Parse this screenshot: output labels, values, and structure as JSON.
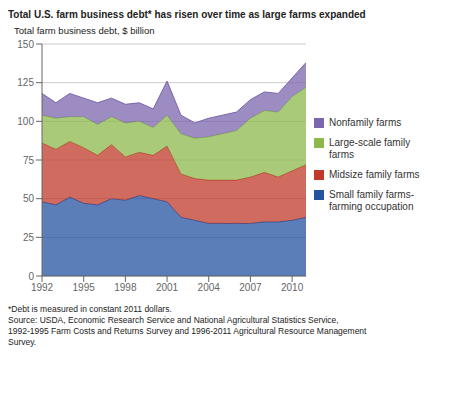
{
  "chart_data": {
    "type": "area",
    "stacked": true,
    "title": "Total U.S. farm business debt* has risen over time as large farms expanded",
    "ylabel": "Total farm business debt, $ billion",
    "annotations": [
      "*Debt is measured in constant 2011 dollars.",
      "Source: USDA, Economic Research Service and National Agricultural Statistics Service,",
      "1992-1995 Farm Costs and Returns Survey and 1996-2011 Agricultural Resource Management",
      "Survey."
    ],
    "x": [
      1992,
      1993,
      1994,
      1995,
      1996,
      1997,
      1998,
      1999,
      2000,
      2001,
      2002,
      2003,
      2004,
      2005,
      2006,
      2007,
      2008,
      2009,
      2010,
      2011
    ],
    "series": [
      {
        "name": "Small family farms-\nfarming occupation",
        "color": "#2653a0",
        "values": [
          48,
          46,
          51,
          47,
          46,
          50,
          49,
          52,
          50,
          48,
          38,
          36,
          34,
          34,
          34,
          34,
          35,
          35,
          36,
          38
        ]
      },
      {
        "name": "Midsize family farms",
        "color": "#c0392b",
        "values": [
          38,
          36,
          36,
          36,
          32,
          35,
          28,
          28,
          28,
          36,
          28,
          27,
          28,
          28,
          28,
          30,
          32,
          29,
          32,
          34
        ]
      },
      {
        "name": "Large-scale family\nfarms",
        "color": "#8cb84c",
        "values": [
          18,
          20,
          16,
          20,
          20,
          18,
          22,
          20,
          18,
          20,
          26,
          26,
          28,
          30,
          32,
          38,
          40,
          42,
          48,
          50
        ]
      },
      {
        "name": "Nonfamily farms",
        "color": "#7b65ae",
        "values": [
          14,
          10,
          15,
          12,
          14,
          12,
          12,
          12,
          12,
          22,
          12,
          10,
          12,
          12,
          12,
          12,
          12,
          12,
          12,
          16
        ]
      }
    ],
    "xlim": [
      1992,
      2011
    ],
    "ylim": [
      0,
      150
    ],
    "xticks": [
      1992,
      1995,
      1998,
      2001,
      2004,
      2007,
      2010
    ],
    "yticks": [
      0,
      25,
      50,
      75,
      100,
      125,
      150
    ],
    "grid": true,
    "legend": "right"
  }
}
